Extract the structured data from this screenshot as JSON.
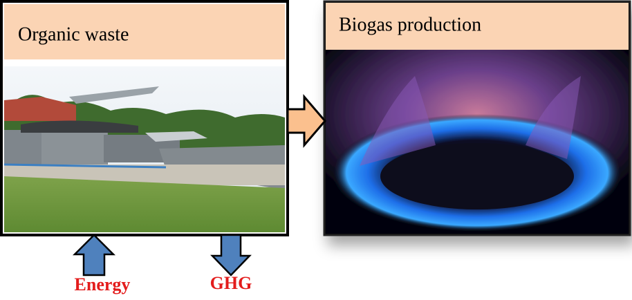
{
  "left_panel": {
    "title": "Organic waste"
  },
  "right_panel": {
    "title": "Biogas production"
  },
  "flows": {
    "input": "Energy",
    "output": "GHG"
  }
}
